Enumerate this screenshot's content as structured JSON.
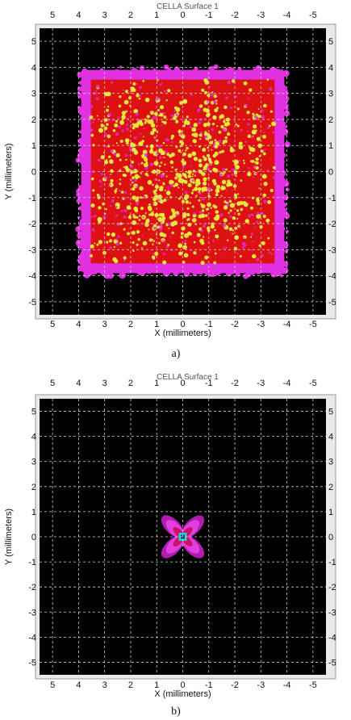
{
  "panels": [
    {
      "caption": "a)",
      "title": "CELLA Surface 1",
      "xlabel": "X (millimeters)",
      "ylabel": "Y (millimeters)",
      "top_ticks": [
        "5",
        "4",
        "3",
        "2",
        "1",
        "0",
        "-1",
        "-2",
        "-3",
        "-4",
        "-5"
      ],
      "bottom_ticks": [
        "5",
        "4",
        "3",
        "2",
        "1",
        "0",
        "-1",
        "-2",
        "-3",
        "-4",
        "-5"
      ],
      "left_ticks": [
        "5",
        "4",
        "3",
        "2",
        "1",
        "0",
        "-1",
        "-2",
        "-3",
        "-4",
        "-5"
      ],
      "right_ticks": [
        "5",
        "4",
        "3",
        "2",
        "1",
        "0",
        "-1",
        "-2",
        "-3",
        "-4",
        "-5"
      ]
    },
    {
      "caption": "b)",
      "title": "CELLA Surface 1",
      "xlabel": "X (millimeters)",
      "ylabel": "Y (millimeters)",
      "top_ticks": [
        "5",
        "4",
        "3",
        "2",
        "1",
        "0",
        "-1",
        "-2",
        "-3",
        "-4",
        "-5"
      ],
      "bottom_ticks": [
        "5",
        "4",
        "3",
        "2",
        "1",
        "0",
        "-1",
        "-2",
        "-3",
        "-4",
        "-5"
      ],
      "left_ticks": [
        "5",
        "4",
        "3",
        "2",
        "1",
        "0",
        "-1",
        "-2",
        "-3",
        "-4",
        "-5"
      ],
      "right_ticks": [
        "5",
        "4",
        "3",
        "2",
        "1",
        "0",
        "-1",
        "-2",
        "-3",
        "-4",
        "-5"
      ]
    }
  ],
  "chart_data": [
    {
      "type": "heatmap",
      "title": "CELLA Surface 1",
      "xlabel": "X (millimeters)",
      "ylabel": "Y (millimeters)",
      "xlim": [
        5.5,
        -5.5
      ],
      "ylim": [
        -5.5,
        5.5
      ],
      "x_ticks": [
        5,
        4,
        3,
        2,
        1,
        0,
        -1,
        -2,
        -3,
        -4,
        -5
      ],
      "y_ticks": [
        5,
        4,
        3,
        2,
        1,
        0,
        -1,
        -2,
        -3,
        -4,
        -5
      ],
      "grid": true,
      "background": "#000000",
      "spot_shape": "square",
      "spot_extent": {
        "x": [
          -3.9,
          3.9
        ],
        "y": [
          -3.9,
          3.9
        ]
      },
      "colors": {
        "edge": "#e030e0",
        "body": "#dd1111",
        "core": "#e6e83a"
      }
    },
    {
      "type": "heatmap",
      "title": "CELLA Surface 1",
      "xlabel": "X (millimeters)",
      "ylabel": "Y (millimeters)",
      "xlim": [
        5.5,
        -5.5
      ],
      "ylim": [
        -5.5,
        5.5
      ],
      "x_ticks": [
        5,
        4,
        3,
        2,
        1,
        0,
        -1,
        -2,
        -3,
        -4,
        -5
      ],
      "y_ticks": [
        5,
        4,
        3,
        2,
        1,
        0,
        -1,
        -2,
        -3,
        -4,
        -5
      ],
      "grid": true,
      "background": "#000000",
      "spot_shape": "four-lobed cross",
      "spot_center": [
        0,
        0
      ],
      "spot_lobe_radius": 1.0,
      "colors": {
        "edge": "#b01cb0",
        "mid": "#e040e0",
        "core": "#d01060",
        "center": "#1fd6c0"
      }
    }
  ]
}
